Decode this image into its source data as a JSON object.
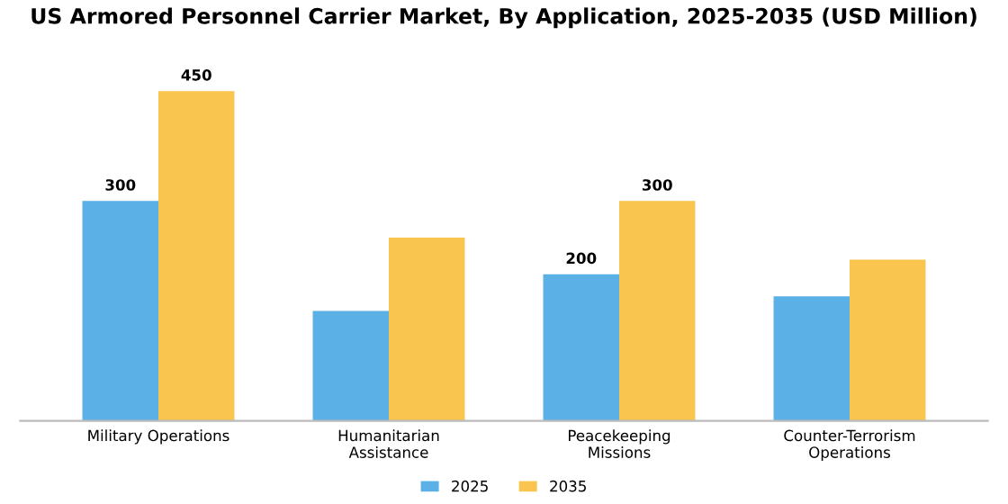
{
  "chart_data": {
    "type": "bar",
    "title": "US Armored Personnel Carrier Market, By Application, 2025-2035 (USD Million)",
    "categories": [
      "Military Operations",
      "Humanitarian\nAssistance",
      "Peacekeeping\nMissions",
      "Counter-Terrorism\nOperations"
    ],
    "series": [
      {
        "name": "2025",
        "color": "#5bb1e6",
        "values": [
          300,
          150,
          200,
          170
        ],
        "value_labels": [
          "300",
          null,
          "200",
          null
        ]
      },
      {
        "name": "2035",
        "color": "#f9c54e",
        "values": [
          450,
          250,
          300,
          220
        ],
        "value_labels": [
          "450",
          null,
          "300",
          null
        ]
      }
    ],
    "legend": "bottom",
    "grid": false
  }
}
